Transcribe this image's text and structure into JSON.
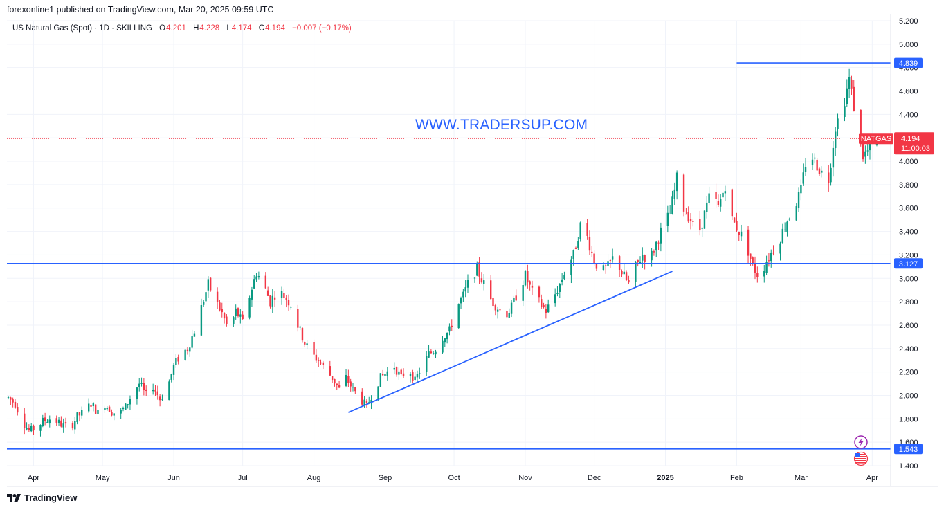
{
  "header": {
    "publisher": "forexonline1 published on TradingView.com, Mar 20, 2025 09:59 UTC"
  },
  "legend": {
    "symbol": "US Natural Gas (Spot) · 1D · SKILLING",
    "o_label": "O",
    "o_value": "4.201",
    "h_label": "H",
    "h_value": "4.228",
    "l_label": "L",
    "l_value": "4.174",
    "c_label": "C",
    "c_value": "4.194",
    "change": "−0.007 (−0.17%)"
  },
  "watermark": "WWW.TRADERSUP.COM",
  "footer": {
    "brand": "TradingView"
  },
  "colors": {
    "up": "#089981",
    "down": "#f23645",
    "line": "#2962ff",
    "grid": "#f0f3fa"
  },
  "chart_data": {
    "type": "candlestick",
    "title": "US Natural Gas (Spot) · 1D · SKILLING",
    "ylim": [
      1.4,
      5.2
    ],
    "y_ticks": [
      "5.200",
      "5.000",
      "4.800",
      "4.600",
      "4.400",
      "4.200",
      "4.000",
      "3.800",
      "3.600",
      "3.400",
      "3.200",
      "3.000",
      "2.800",
      "2.600",
      "2.400",
      "2.200",
      "2.000",
      "1.800",
      "1.600",
      "1.400"
    ],
    "x_labels": [
      "Apr",
      "May",
      "Jun",
      "Jul",
      "Aug",
      "Sep",
      "Oct",
      "Nov",
      "Dec",
      "2025",
      "Feb",
      "Mar",
      "Apr"
    ],
    "x_label_days": [
      11,
      41,
      72,
      102,
      133,
      164,
      194,
      225,
      255,
      286,
      317,
      345,
      376
    ],
    "grid": true,
    "series_points": [
      [
        0,
        1.98
      ],
      [
        3,
        1.93
      ],
      [
        6,
        1.78
      ],
      [
        9,
        1.7
      ],
      [
        12,
        1.72
      ],
      [
        15,
        1.78
      ],
      [
        18,
        1.8
      ],
      [
        21,
        1.78
      ],
      [
        24,
        1.74
      ],
      [
        27,
        1.72
      ],
      [
        30,
        1.82
      ],
      [
        33,
        1.86
      ],
      [
        36,
        1.93
      ],
      [
        39,
        1.85
      ],
      [
        42,
        1.93
      ],
      [
        45,
        1.86
      ],
      [
        48,
        1.84
      ],
      [
        51,
        1.9
      ],
      [
        54,
        2.02
      ],
      [
        57,
        2.1
      ],
      [
        60,
        2.0
      ],
      [
        63,
        2.08
      ],
      [
        66,
        1.97
      ],
      [
        69,
        2.05
      ],
      [
        72,
        2.25
      ],
      [
        75,
        2.35
      ],
      [
        78,
        2.4
      ],
      [
        81,
        2.55
      ],
      [
        84,
        2.75
      ],
      [
        87,
        2.95
      ],
      [
        90,
        2.82
      ],
      [
        93,
        2.7
      ],
      [
        96,
        2.55
      ],
      [
        99,
        2.72
      ],
      [
        102,
        2.62
      ],
      [
        105,
        2.85
      ],
      [
        108,
        3.05
      ],
      [
        111,
        2.95
      ],
      [
        114,
        2.8
      ],
      [
        117,
        2.9
      ],
      [
        120,
        2.85
      ],
      [
        123,
        2.78
      ],
      [
        126,
        2.6
      ],
      [
        129,
        2.45
      ],
      [
        132,
        2.35
      ],
      [
        135,
        2.3
      ],
      [
        138,
        2.22
      ],
      [
        141,
        2.15
      ],
      [
        144,
        2.05
      ],
      [
        147,
        2.15
      ],
      [
        150,
        2.05
      ],
      [
        153,
        1.98
      ],
      [
        156,
        1.9
      ],
      [
        159,
        2.05
      ],
      [
        162,
        2.15
      ],
      [
        165,
        2.2
      ],
      [
        168,
        2.25
      ],
      [
        171,
        2.15
      ],
      [
        174,
        2.25
      ],
      [
        177,
        2.12
      ],
      [
        180,
        2.25
      ],
      [
        183,
        2.35
      ],
      [
        186,
        2.4
      ],
      [
        189,
        2.5
      ],
      [
        192,
        2.55
      ],
      [
        195,
        2.75
      ],
      [
        198,
        2.85
      ],
      [
        201,
        3.0
      ],
      [
        204,
        3.08
      ],
      [
        207,
        2.95
      ],
      [
        210,
        2.82
      ],
      [
        213,
        2.75
      ],
      [
        216,
        2.68
      ],
      [
        219,
        2.75
      ],
      [
        222,
        2.9
      ],
      [
        225,
        3.02
      ],
      [
        228,
        2.88
      ],
      [
        231,
        2.8
      ],
      [
        234,
        2.72
      ],
      [
        237,
        2.82
      ],
      [
        240,
        2.95
      ],
      [
        243,
        3.1
      ],
      [
        246,
        3.2
      ],
      [
        249,
        3.45
      ],
      [
        252,
        3.35
      ],
      [
        255,
        3.15
      ],
      [
        258,
        3.05
      ],
      [
        261,
        3.1
      ],
      [
        264,
        3.2
      ],
      [
        267,
        3.05
      ],
      [
        270,
        2.95
      ],
      [
        273,
        3.1
      ],
      [
        276,
        3.2
      ],
      [
        279,
        3.15
      ],
      [
        282,
        3.3
      ],
      [
        285,
        3.45
      ],
      [
        288,
        3.55
      ],
      [
        291,
        3.85
      ],
      [
        294,
        3.6
      ],
      [
        297,
        3.5
      ],
      [
        300,
        3.35
      ],
      [
        303,
        3.55
      ],
      [
        306,
        3.75
      ],
      [
        309,
        3.6
      ],
      [
        312,
        3.8
      ],
      [
        315,
        3.5
      ],
      [
        318,
        3.4
      ],
      [
        321,
        3.3
      ],
      [
        324,
        3.1
      ],
      [
        327,
        3.0
      ],
      [
        330,
        3.15
      ],
      [
        333,
        3.25
      ],
      [
        336,
        3.35
      ],
      [
        339,
        3.5
      ],
      [
        342,
        3.6
      ],
      [
        345,
        3.75
      ],
      [
        348,
        4.1
      ],
      [
        351,
        4.0
      ],
      [
        354,
        3.9
      ],
      [
        357,
        3.85
      ],
      [
        360,
        4.3
      ],
      [
        363,
        4.45
      ],
      [
        366,
        4.7
      ],
      [
        369,
        4.35
      ],
      [
        372,
        4.05
      ],
      [
        375,
        4.1
      ],
      [
        378,
        4.19
      ]
    ],
    "horizontal_levels": [
      {
        "price": 4.839,
        "label": "4.839",
        "x_start_day": 317
      },
      {
        "price": 3.127,
        "label": "3.127",
        "x_start_day": -1
      },
      {
        "price": 1.543,
        "label": "1.543",
        "x_start_day": -1
      }
    ],
    "trendline": {
      "from": {
        "day": 148,
        "price": 1.855
      },
      "to": {
        "day": 289,
        "price": 3.06
      }
    },
    "current_price": {
      "symbol": "NATGAS",
      "price": 4.194,
      "label": "4.194",
      "countdown": "11:00:03"
    },
    "event_icons": [
      "lightning-icon",
      "us-flag-icon"
    ]
  }
}
